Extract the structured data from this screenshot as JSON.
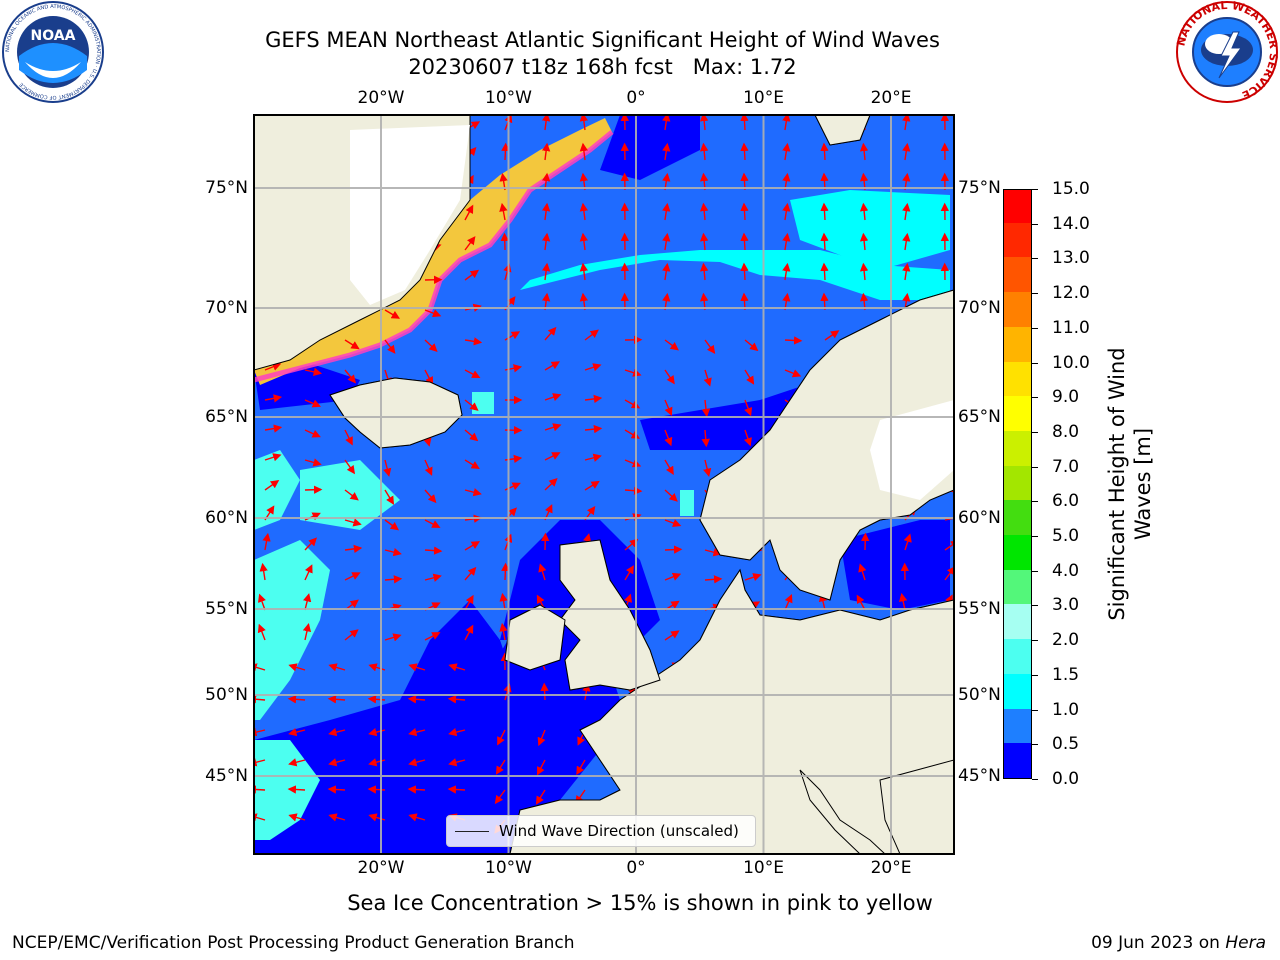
{
  "title": {
    "line1": "GEFS MEAN Northeast Atlantic Significant Height of Wind Waves",
    "line2": "20230607 t18z 168h fcst   Max: 1.72"
  },
  "logos": {
    "left": "noaa-logo",
    "left_text": "NOAA",
    "left_ring_text": "NATIONAL OCEANIC AND ATMOSPHERIC ADMINISTRATION · U.S. DEPARTMENT OF COMMERCE",
    "right": "nws-logo",
    "right_ring_text": "NATIONAL WEATHER SERVICE"
  },
  "map": {
    "lon_ticks": [
      "20°W",
      "10°W",
      "0°",
      "10°E",
      "20°E"
    ],
    "lat_ticks": [
      "75°N",
      "70°N",
      "65°N",
      "60°N",
      "55°N",
      "50°N",
      "45°N"
    ],
    "lon_values": [
      -20,
      -10,
      0,
      10,
      20
    ],
    "lat_values": [
      75,
      70,
      65,
      60,
      55,
      50,
      45
    ],
    "extent": {
      "lon_min": -30,
      "lon_max": 25,
      "lat_min": 40,
      "lat_max": 77
    },
    "ocean_base_color": "#1f6bff",
    "land_color": "#efeedd",
    "ice_color": "#ffffff",
    "arrow_color": "#ff0000",
    "grid_color": "#b0b0b0"
  },
  "legend": {
    "label": "Wind Wave Direction (unscaled)"
  },
  "colorbar": {
    "label": "Significant Height of Wind Waves [m]",
    "ticks": [
      "0.0",
      "0.5",
      "1.0",
      "1.5",
      "2.0",
      "3.0",
      "4.0",
      "5.0",
      "6.0",
      "7.0",
      "8.0",
      "9.0",
      "10.0",
      "11.0",
      "12.0",
      "13.0",
      "14.0",
      "15.0"
    ],
    "colors": [
      "#0000ff",
      "#1e7fff",
      "#00ffff",
      "#4cfff0",
      "#a6fff2",
      "#53f77a",
      "#00e600",
      "#43dd10",
      "#a3e600",
      "#cbf000",
      "#ffff00",
      "#ffe100",
      "#ffb400",
      "#ff8000",
      "#ff5500",
      "#ff2800",
      "#ff0000"
    ]
  },
  "ice_note": "Sea Ice Concentration > 15% is shown in pink to yellow",
  "footer": {
    "left": "NCEP/EMC/Verification Post Processing Product Generation Branch",
    "right_prefix": "09 Jun 2023 on ",
    "right_host": "Hera"
  }
}
